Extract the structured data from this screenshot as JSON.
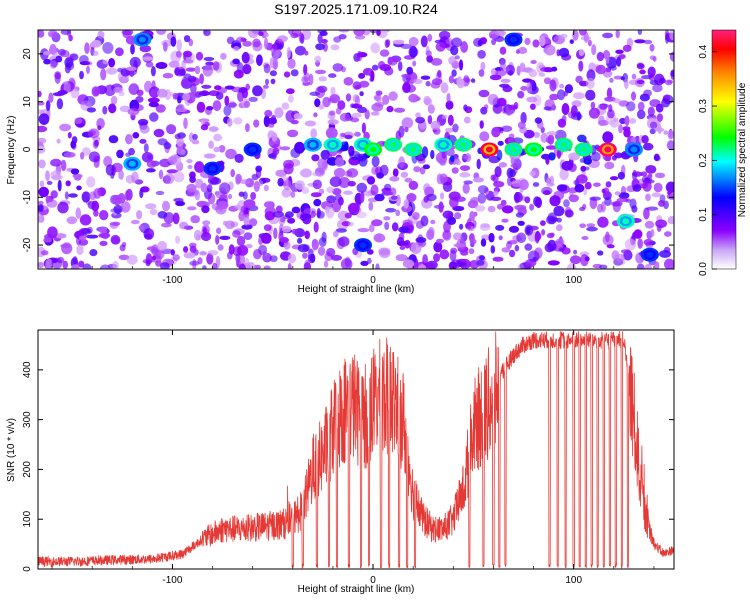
{
  "title": "S197.2025.171.09.10.R24",
  "colors": {
    "trace": "#e53935",
    "background": "#ffffff",
    "axis": "#000000",
    "colormap_stops": [
      "#ffffff",
      "#8b00ff",
      "#0000ff",
      "#00ffff",
      "#00ff00",
      "#ffff00",
      "#ff8800",
      "#ff0000",
      "#ff0080"
    ]
  },
  "chart_data": [
    {
      "type": "heatmap",
      "xlabel": "Height of straight line (km)",
      "ylabel": "Frequency (Hz)",
      "colorbar_label": "Normalized spectral amplitude",
      "xlim": [
        -167,
        150
      ],
      "ylim": [
        -25,
        25
      ],
      "clim": [
        0,
        0.44
      ],
      "xticks": [
        -100,
        0,
        100
      ],
      "xtick_labels": [
        "-100",
        "0",
        "100"
      ],
      "yticks": [
        -20,
        -10,
        0,
        10,
        20
      ],
      "ytick_labels": [
        "-20",
        "-10",
        "0",
        "10",
        "20"
      ],
      "cticks": [
        0,
        0.1,
        0.2,
        0.3,
        0.4
      ],
      "ctick_labels": [
        "0.0",
        "0.1",
        "0.2",
        "0.3",
        "0.4"
      ],
      "colormap": "white-purple-blue-cyan-green-yellow-red-magenta",
      "background_level": 0.06,
      "peaks": [
        {
          "x": -120,
          "y": -3,
          "v": 0.15
        },
        {
          "x": -80,
          "y": -4,
          "v": 0.12
        },
        {
          "x": -60,
          "y": 0,
          "v": 0.12
        },
        {
          "x": -30,
          "y": 1,
          "v": 0.15
        },
        {
          "x": -20,
          "y": 1,
          "v": 0.18
        },
        {
          "x": -5,
          "y": 1,
          "v": 0.18
        },
        {
          "x": 0,
          "y": 0,
          "v": 0.22
        },
        {
          "x": 10,
          "y": 1,
          "v": 0.2
        },
        {
          "x": 20,
          "y": 0,
          "v": 0.2
        },
        {
          "x": 35,
          "y": 1,
          "v": 0.18
        },
        {
          "x": 45,
          "y": 1,
          "v": 0.2
        },
        {
          "x": 58,
          "y": 0,
          "v": 0.41
        },
        {
          "x": 70,
          "y": 0,
          "v": 0.2
        },
        {
          "x": 80,
          "y": 0,
          "v": 0.22
        },
        {
          "x": 95,
          "y": 1,
          "v": 0.2
        },
        {
          "x": 105,
          "y": 0,
          "v": 0.2
        },
        {
          "x": 117,
          "y": 0,
          "v": 0.43
        },
        {
          "x": 126,
          "y": -15,
          "v": 0.18
        },
        {
          "x": 138,
          "y": -22,
          "v": 0.12
        },
        {
          "x": -115,
          "y": 23,
          "v": 0.14
        },
        {
          "x": -5,
          "y": -20,
          "v": 0.12
        },
        {
          "x": 70,
          "y": 23,
          "v": 0.12
        },
        {
          "x": 130,
          "y": 0,
          "v": 0.14
        }
      ]
    },
    {
      "type": "line",
      "xlabel": "Height of straight line (km)",
      "ylabel": "SNR (10 * v/v)",
      "xlim": [
        -167,
        150
      ],
      "ylim": [
        0,
        480
      ],
      "xticks": [
        -100,
        0,
        100
      ],
      "xtick_labels": [
        "-100",
        "0",
        "100"
      ],
      "yticks": [
        0,
        100,
        200,
        300,
        400
      ],
      "ytick_labels": [
        "0",
        "100",
        "200",
        "300",
        "400"
      ],
      "series": [
        {
          "x": [
            -167,
            -150,
            -130,
            -110,
            -95,
            -85,
            -75,
            -65,
            -55,
            -45,
            -40,
            -35,
            -30,
            -25,
            -20,
            -15,
            -10,
            -5,
            0,
            5,
            10,
            15,
            20,
            25,
            30,
            35,
            40,
            45,
            50,
            55,
            60,
            65,
            70,
            75,
            80,
            85,
            90,
            100,
            110,
            120,
            125,
            130,
            135,
            140,
            145,
            150
          ],
          "values": [
            15,
            15,
            18,
            20,
            30,
            60,
            80,
            80,
            85,
            90,
            100,
            120,
            200,
            230,
            280,
            320,
            330,
            300,
            330,
            350,
            340,
            300,
            150,
            100,
            80,
            80,
            100,
            160,
            280,
            320,
            340,
            400,
            430,
            450,
            460,
            460,
            460,
            460,
            460,
            460,
            460,
            300,
            120,
            50,
            30,
            40
          ]
        }
      ],
      "dropouts": [
        -40,
        -35,
        -28,
        -22,
        -18,
        -12,
        -6,
        -2,
        4,
        8,
        13,
        17,
        21,
        48,
        55,
        60,
        63,
        66,
        88,
        92,
        96,
        100,
        103,
        106,
        109,
        112,
        115,
        118,
        121,
        124,
        127
      ]
    }
  ]
}
